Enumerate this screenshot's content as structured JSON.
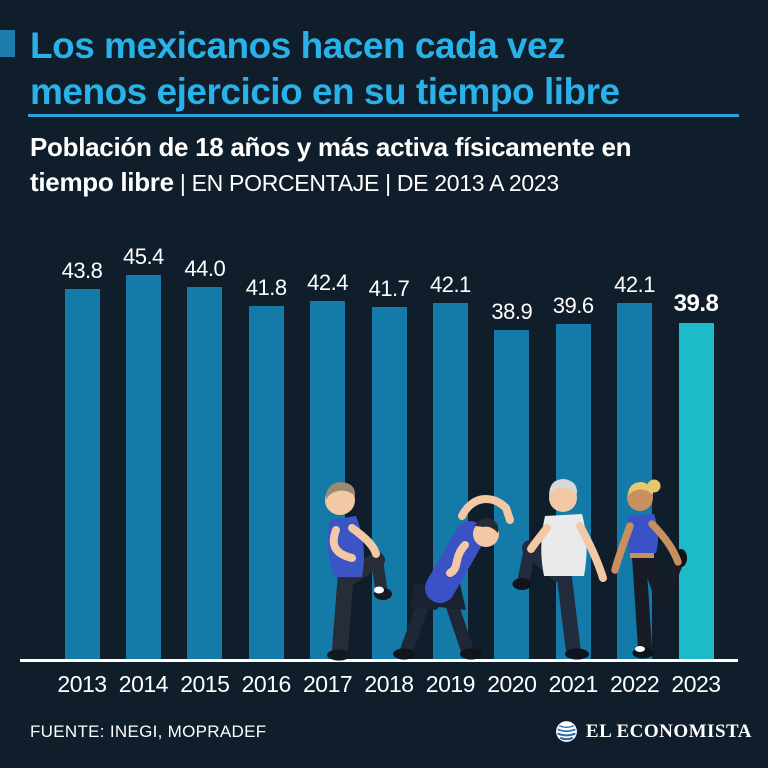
{
  "colors": {
    "background": "#101d2b",
    "title_text": "#29b2e8",
    "accent_square": "#1f7dae",
    "divider": "#2aa0dd",
    "bar": "#147aa8",
    "bar_highlight": "#1dbac9",
    "text": "#ffffff"
  },
  "header": {
    "title_line1": "Los mexicanos hacen cada vez",
    "title_line2": "menos ejercicio en su tiempo libre",
    "subtitle_bold_line1": "Población de 18 años y más activa físicamente en",
    "subtitle_bold_line2": "tiempo libre",
    "subtitle_meta": " | EN PORCENTAJE | DE 2013 A 2023"
  },
  "chart_data": {
    "type": "bar",
    "title": "Los mexicanos hacen cada vez menos ejercicio en su tiempo libre",
    "subtitle": "Población de 18 años y más activa físicamente en tiempo libre | EN PORCENTAJE | DE 2013 A 2023",
    "categories": [
      "2013",
      "2014",
      "2015",
      "2016",
      "2017",
      "2018",
      "2019",
      "2020",
      "2021",
      "2022",
      "2023"
    ],
    "values": [
      43.8,
      45.4,
      44.0,
      41.8,
      42.4,
      41.7,
      42.1,
      38.9,
      39.6,
      42.1,
      39.8
    ],
    "highlight_index": 10,
    "bar_color": "#147aa8",
    "highlight_color": "#1dbac9",
    "xlabel": "",
    "ylabel": "",
    "ylim": [
      0,
      50
    ],
    "grid": false,
    "legend": false,
    "value_labels_shown": true
  },
  "footer": {
    "source": "FUENTE: INEGI, MOPRADEF",
    "brand": "EL ECONOMISTA"
  }
}
